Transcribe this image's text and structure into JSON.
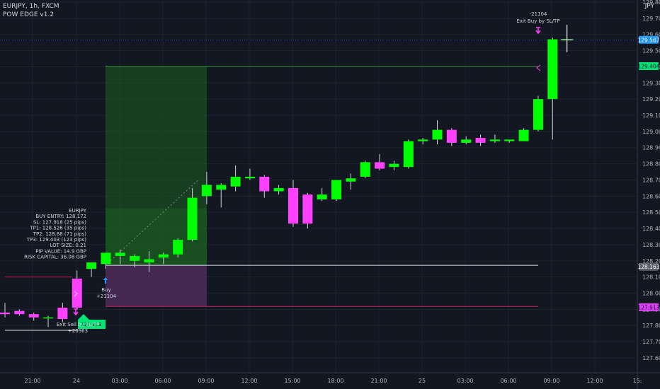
{
  "header": {
    "title": "EURJPY, 1h, FXCM",
    "indicator": "POW EDGE v1.2",
    "currency": "JPY"
  },
  "colors": {
    "background": "#131722",
    "up": "#00ff00",
    "down": "#ff40ff",
    "tp_zone": "#1b5e20",
    "sl_zone": "#4a2a56",
    "entry_line": "#e0e3eb",
    "sl_line": "#c2185b",
    "tp_line": "#388e3c",
    "current_tag": "#2196f3",
    "tp_tag": "#00e676",
    "sl_tag": "#e040fb",
    "entry_tag": "#5d606b"
  },
  "chart_data": {
    "type": "candlestick",
    "symbol": "EURJPY",
    "timeframe": "1h",
    "source": "FXCM",
    "y_axis": {
      "ticks": [
        "129.800",
        "129.700",
        "129.600",
        "129.500",
        "129.400",
        "129.300",
        "129.200",
        "129.100",
        "129.000",
        "128.900",
        "128.800",
        "128.700",
        "128.600",
        "128.500",
        "128.400",
        "128.300",
        "128.200",
        "128.100",
        "128.000",
        "127.900",
        "127.800",
        "127.700",
        "127.600"
      ],
      "range": [
        127.53,
        129.83
      ]
    },
    "x_axis": {
      "ticks": [
        "21:00",
        "24",
        "03:00",
        "06:00",
        "09:00",
        "12:00",
        "15:00",
        "18:00",
        "21:00",
        "25",
        "03:00",
        "06:00",
        "09:00",
        "12:00",
        "15:"
      ]
    },
    "candles": [
      {
        "o": 127.88,
        "h": 127.94,
        "l": 127.85,
        "c": 127.87
      },
      {
        "o": 127.89,
        "h": 127.9,
        "l": 127.86,
        "c": 127.87
      },
      {
        "o": 127.87,
        "h": 127.88,
        "l": 127.83,
        "c": 127.85
      },
      {
        "o": 127.85,
        "h": 127.86,
        "l": 127.79,
        "c": 127.85
      },
      {
        "o": 127.91,
        "h": 127.94,
        "l": 127.82,
        "c": 127.84
      },
      {
        "o": 128.09,
        "h": 128.14,
        "l": 127.9,
        "c": 127.91
      },
      {
        "o": 128.15,
        "h": 128.19,
        "l": 128.1,
        "c": 128.19
      },
      {
        "o": 128.18,
        "h": 128.25,
        "l": 128.15,
        "c": 128.25
      },
      {
        "o": 128.23,
        "h": 128.27,
        "l": 128.18,
        "c": 128.25
      },
      {
        "o": 128.2,
        "h": 128.24,
        "l": 128.16,
        "c": 128.23
      },
      {
        "o": 128.19,
        "h": 128.26,
        "l": 128.13,
        "c": 128.21
      },
      {
        "o": 128.22,
        "h": 128.25,
        "l": 128.18,
        "c": 128.24
      },
      {
        "o": 128.24,
        "h": 128.34,
        "l": 128.22,
        "c": 128.33
      },
      {
        "o": 128.33,
        "h": 128.65,
        "l": 128.32,
        "c": 128.59
      },
      {
        "o": 128.6,
        "h": 128.75,
        "l": 128.55,
        "c": 128.67
      },
      {
        "o": 128.64,
        "h": 128.68,
        "l": 128.53,
        "c": 128.67
      },
      {
        "o": 128.66,
        "h": 128.79,
        "l": 128.63,
        "c": 128.72
      },
      {
        "o": 128.71,
        "h": 128.77,
        "l": 128.7,
        "c": 128.72
      },
      {
        "o": 128.72,
        "h": 128.73,
        "l": 128.59,
        "c": 128.63
      },
      {
        "o": 128.63,
        "h": 128.67,
        "l": 128.61,
        "c": 128.65
      },
      {
        "o": 128.65,
        "h": 128.7,
        "l": 128.41,
        "c": 128.43
      },
      {
        "o": 128.61,
        "h": 128.62,
        "l": 128.4,
        "c": 128.43
      },
      {
        "o": 128.58,
        "h": 128.65,
        "l": 128.57,
        "c": 128.61
      },
      {
        "o": 128.58,
        "h": 128.7,
        "l": 128.57,
        "c": 128.7
      },
      {
        "o": 128.69,
        "h": 128.74,
        "l": 128.64,
        "c": 128.71
      },
      {
        "o": 128.72,
        "h": 128.82,
        "l": 128.71,
        "c": 128.81
      },
      {
        "o": 128.81,
        "h": 128.86,
        "l": 128.76,
        "c": 128.77
      },
      {
        "o": 128.78,
        "h": 128.82,
        "l": 128.76,
        "c": 128.8
      },
      {
        "o": 128.78,
        "h": 128.95,
        "l": 128.77,
        "c": 128.94
      },
      {
        "o": 128.94,
        "h": 128.96,
        "l": 128.92,
        "c": 128.95
      },
      {
        "o": 128.95,
        "h": 129.07,
        "l": 128.92,
        "c": 129.01
      },
      {
        "o": 129.01,
        "h": 129.02,
        "l": 128.91,
        "c": 128.93
      },
      {
        "o": 128.93,
        "h": 128.97,
        "l": 128.92,
        "c": 128.95
      },
      {
        "o": 128.96,
        "h": 128.98,
        "l": 128.91,
        "c": 128.93
      },
      {
        "o": 128.94,
        "h": 128.98,
        "l": 128.93,
        "c": 128.95
      },
      {
        "o": 128.94,
        "h": 128.95,
        "l": 128.93,
        "c": 128.95
      },
      {
        "o": 128.94,
        "h": 129.02,
        "l": 128.94,
        "c": 129.01
      },
      {
        "o": 129.01,
        "h": 129.22,
        "l": 129.0,
        "c": 129.2
      },
      {
        "o": 129.2,
        "h": 129.58,
        "l": 128.95,
        "c": 129.57
      },
      {
        "o": 129.57,
        "h": 129.66,
        "l": 129.49,
        "c": 129.57
      }
    ],
    "levels": [
      {
        "name": "current",
        "value": 129.567,
        "label": "129.567"
      },
      {
        "name": "tp3",
        "value": 129.404,
        "label": "129.404"
      },
      {
        "name": "entry",
        "value": 128.163,
        "label": "128.163"
      },
      {
        "name": "sl",
        "value": 127.913,
        "label": "127.913"
      }
    ],
    "trade_box": {
      "entry": 128.172,
      "sl": 127.918,
      "tp1": 128.526,
      "tp3": 129.403,
      "start_index": 7,
      "end_index": 14
    },
    "info_box": [
      "EURJPY",
      "BUY ENTRY: 128.172",
      "SL: 127.918 (25 pips)",
      "TP1: 128.526 (35 pips)",
      "TP2: 128.88 (71 pips)",
      "TP3: 129.403 (123 pips)",
      "LOT SIZE: 0.21",
      "PIP VALUE: 14.9 GBP",
      "RISK CAPITAL: 36.08 GBP"
    ],
    "annotations": {
      "buy_label": "Buy",
      "buy_value": "+21104",
      "exit_buy_value": "-21104",
      "exit_buy_label": "Exit Buy by SL/TP",
      "exit_sell_label": "Exit Sell by SL/TP",
      "exit_sell_value": "+20963",
      "green_tag": "127.913"
    }
  }
}
